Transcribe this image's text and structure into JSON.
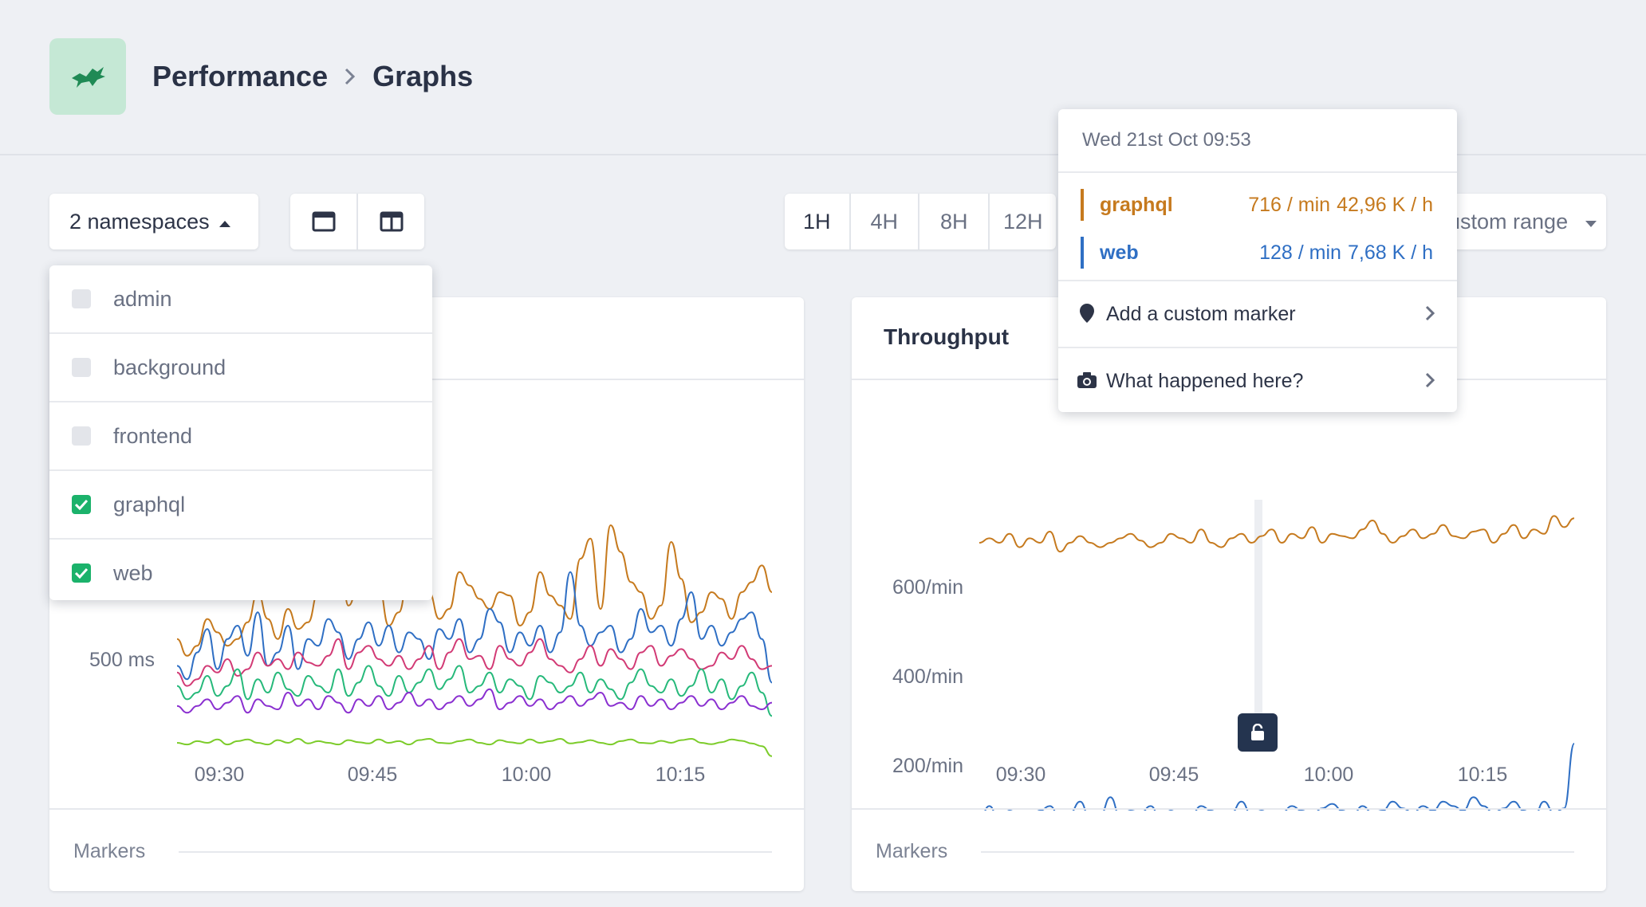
{
  "breadcrumb": {
    "section": "Performance",
    "page": "Graphs"
  },
  "icons": {
    "logo": "bird-icon",
    "breadcrumb_separator": "chevron-right-icon",
    "dropdown_caret": "caret-up-icon",
    "range_caret": "caret-down-icon",
    "single_layout": "single-panel-icon",
    "split_layout": "split-panel-icon",
    "marker": "map-pin-icon",
    "camera": "camera-icon",
    "lock": "lock-icon"
  },
  "toolbar": {
    "namespaces_label": "2 namespaces",
    "ranges": [
      "1H",
      "4H",
      "8H",
      "12H"
    ],
    "active_range": "1H",
    "custom_range_label": "ustom range"
  },
  "namespaces_dropdown": {
    "items": [
      {
        "label": "admin",
        "checked": false
      },
      {
        "label": "background",
        "checked": false
      },
      {
        "label": "frontend",
        "checked": false
      },
      {
        "label": "graphql",
        "checked": true
      },
      {
        "label": "web",
        "checked": true
      }
    ]
  },
  "tooltip": {
    "date": "Wed 21st Oct 09:53",
    "series": [
      {
        "name": "graphql",
        "per_min": "716 / min",
        "per_hour": "42,96 K / h",
        "color": "#c67a1e"
      },
      {
        "name": "web",
        "per_min": "128 / min",
        "per_hour": "7,68 K / h",
        "color": "#2f6fc4"
      }
    ],
    "actions": [
      {
        "label": "Add a custom marker"
      },
      {
        "label": "What happened here?"
      }
    ]
  },
  "colors": {
    "graphql": "#c67a1e",
    "web": "#2f6fc4",
    "pink": "#d23a75",
    "teal": "#26b97a",
    "purple": "#8a2fd0",
    "lime": "#7ccc2a",
    "accent_green": "#1bb26b"
  },
  "panels": {
    "left": {
      "title": "",
      "markers_label": "Markers"
    },
    "right": {
      "title": "Throughput",
      "markers_label": "Markers"
    }
  },
  "chart_data": [
    {
      "type": "line",
      "title": "",
      "x_ticks": [
        "09:30",
        "09:45",
        "10:00",
        "10:15"
      ],
      "y_ticks": [
        "500 ms"
      ],
      "x_range": [
        "09:26",
        "10:24"
      ],
      "series": [
        {
          "color": "#c67a1e",
          "values": [
            560,
            510,
            540,
            620,
            580,
            540,
            560,
            610,
            700,
            620,
            560,
            650,
            590,
            610,
            700,
            1050,
            880,
            660,
            720,
            930,
            720,
            600,
            640,
            760,
            850,
            700,
            620,
            650,
            760,
            720,
            680,
            650,
            700,
            690,
            600,
            640,
            760,
            690,
            660,
            620,
            800,
            860,
            650,
            900,
            820,
            730,
            700,
            620,
            660,
            850,
            740,
            610,
            640,
            700,
            680,
            620,
            700,
            730,
            780,
            700
          ]
        },
        {
          "color": "#2f6fc4",
          "values": [
            480,
            440,
            520,
            590,
            470,
            560,
            600,
            510,
            640,
            480,
            520,
            600,
            470,
            560,
            540,
            620,
            580,
            500,
            560,
            610,
            540,
            600,
            520,
            580,
            560,
            500,
            590,
            560,
            620,
            520,
            560,
            650,
            610,
            520,
            580,
            540,
            600,
            520,
            580,
            760,
            600,
            540,
            580,
            600,
            520,
            560,
            650,
            580,
            600,
            540,
            620,
            700,
            560,
            600,
            540,
            580,
            620,
            640,
            560,
            430
          ]
        },
        {
          "color": "#d23a75",
          "values": [
            460,
            420,
            440,
            480,
            460,
            500,
            450,
            470,
            520,
            480,
            500,
            470,
            520,
            490,
            480,
            510,
            560,
            470,
            520,
            540,
            500,
            480,
            510,
            470,
            500,
            540,
            470,
            520,
            560,
            500,
            510,
            470,
            540,
            500,
            480,
            520,
            560,
            500,
            480,
            460,
            500,
            540,
            480,
            530,
            500,
            470,
            520,
            540,
            480,
            510,
            530,
            500,
            470,
            480,
            520,
            500,
            540,
            500,
            470,
            480
          ]
        },
        {
          "color": "#26b97a",
          "values": [
            420,
            380,
            400,
            450,
            390,
            420,
            470,
            380,
            440,
            400,
            460,
            410,
            390,
            450,
            420,
            400,
            470,
            390,
            430,
            480,
            420,
            390,
            450,
            400,
            430,
            470,
            410,
            440,
            480,
            400,
            420,
            460,
            400,
            440,
            420,
            380,
            450,
            430,
            400,
            420,
            460,
            400,
            440,
            410,
            380,
            430,
            470,
            420,
            400,
            440,
            390,
            420,
            470,
            400,
            440,
            380,
            420,
            460,
            400,
            330
          ]
        },
        {
          "color": "#8a2fd0",
          "values": [
            360,
            340,
            360,
            380,
            350,
            370,
            390,
            340,
            380,
            360,
            350,
            400,
            360,
            380,
            350,
            390,
            370,
            340,
            380,
            360,
            390,
            350,
            370,
            400,
            360,
            380,
            350,
            370,
            390,
            360,
            380,
            410,
            350,
            370,
            390,
            360,
            380,
            350,
            370,
            390,
            360,
            380,
            400,
            360,
            370,
            350,
            390,
            360,
            380,
            350,
            370,
            390,
            360,
            380,
            350,
            370,
            390,
            360,
            350,
            370
          ]
        },
        {
          "color": "#7ccc2a",
          "values": [
            250,
            245,
            255,
            250,
            260,
            245,
            255,
            260,
            250,
            245,
            258,
            250,
            262,
            248,
            255,
            250,
            245,
            258,
            252,
            248,
            260,
            250,
            255,
            245,
            258,
            262,
            250,
            248,
            255,
            260,
            250,
            245,
            258,
            252,
            248,
            260,
            250,
            255,
            262,
            248,
            252,
            258,
            250,
            245,
            255,
            260,
            250,
            248,
            256,
            250,
            258,
            262,
            250,
            246,
            252,
            260,
            256,
            248,
            240,
            210
          ]
        }
      ]
    },
    {
      "type": "line",
      "title": "Throughput",
      "x_ticks": [
        "09:30",
        "09:45",
        "10:00",
        "10:15"
      ],
      "y_ticks": [
        "600/min",
        "400/min",
        "200/min"
      ],
      "x_range": [
        "09:26",
        "10:24"
      ],
      "series": [
        {
          "name": "graphql",
          "color": "#c67a1e",
          "values": [
            700,
            710,
            700,
            720,
            690,
            710,
            700,
            725,
            680,
            700,
            715,
            700,
            690,
            700,
            710,
            720,
            705,
            690,
            700,
            720,
            710,
            700,
            730,
            700,
            690,
            710,
            720,
            700,
            715,
            730,
            700,
            720,
            710,
            735,
            700,
            720,
            715,
            710,
            730,
            750,
            720,
            700,
            715,
            730,
            710,
            720,
            740,
            715,
            710,
            725,
            730,
            700,
            720,
            740,
            710,
            730,
            720,
            760,
            735,
            755
          ]
        },
        {
          "name": "web",
          "color": "#2f6fc4",
          "values": [
            80,
            110,
            75,
            100,
            90,
            80,
            100,
            110,
            85,
            95,
            120,
            80,
            90,
            130,
            85,
            100,
            95,
            110,
            80,
            100,
            85,
            90,
            110,
            100,
            85,
            95,
            120,
            90,
            100,
            85,
            95,
            110,
            100,
            90,
            105,
            115,
            100,
            90,
            110,
            95,
            100,
            120,
            105,
            95,
            110,
            100,
            120,
            110,
            100,
            130,
            110,
            95,
            105,
            120,
            100,
            85,
            120,
            95,
            105,
            250
          ]
        }
      ]
    }
  ]
}
